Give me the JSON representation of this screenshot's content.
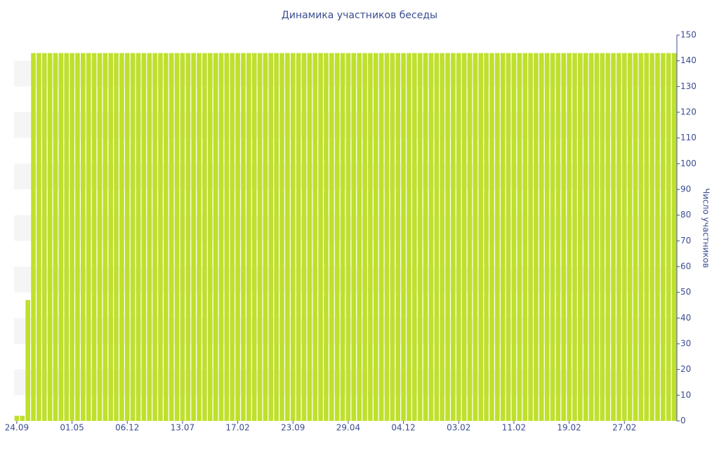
{
  "chart_data": {
    "type": "bar",
    "title": "Динамика участников беседы",
    "y_label": "Число участников",
    "categories": [
      "24.09",
      null,
      null,
      null,
      null,
      null,
      null,
      null,
      null,
      null,
      "01.05",
      null,
      null,
      null,
      null,
      null,
      null,
      null,
      null,
      null,
      "06.12",
      null,
      null,
      null,
      null,
      null,
      null,
      null,
      null,
      null,
      "13.07",
      null,
      null,
      null,
      null,
      null,
      null,
      null,
      null,
      null,
      "17.02",
      null,
      null,
      null,
      null,
      null,
      null,
      null,
      null,
      null,
      "23.09",
      null,
      null,
      null,
      null,
      null,
      null,
      null,
      null,
      null,
      "29.04",
      null,
      null,
      null,
      null,
      null,
      null,
      null,
      null,
      null,
      "04.12",
      null,
      null,
      null,
      null,
      null,
      null,
      null,
      null,
      null,
      "03.02",
      null,
      null,
      null,
      null,
      null,
      null,
      null,
      null,
      null,
      "11.02",
      null,
      null,
      null,
      null,
      null,
      null,
      null,
      null,
      null,
      "19.02",
      null,
      null,
      null,
      null,
      null,
      null,
      null,
      null,
      null,
      "27.02",
      null,
      null,
      null,
      null,
      null,
      null,
      null,
      null,
      null
    ],
    "values": [
      2,
      2,
      47,
      143,
      143,
      143,
      143,
      143,
      143,
      143,
      143,
      143,
      143,
      143,
      143,
      143,
      143,
      143,
      143,
      143,
      143,
      143,
      143,
      143,
      143,
      143,
      143,
      143,
      143,
      143,
      143,
      143,
      143,
      143,
      143,
      143,
      143,
      143,
      143,
      143,
      143,
      143,
      143,
      143,
      143,
      143,
      143,
      143,
      143,
      143,
      143,
      143,
      143,
      143,
      143,
      143,
      143,
      143,
      143,
      143,
      143,
      143,
      143,
      143,
      143,
      143,
      143,
      143,
      143,
      143,
      143,
      143,
      143,
      143,
      143,
      143,
      143,
      143,
      143,
      143,
      143,
      143,
      143,
      143,
      143,
      143,
      143,
      143,
      143,
      143,
      143,
      143,
      143,
      143,
      143,
      143,
      143,
      143,
      143,
      143,
      143,
      143,
      143,
      143,
      143,
      143,
      143,
      143,
      143,
      143,
      143,
      143,
      143,
      143,
      143,
      143,
      143,
      143,
      143,
      143
    ],
    "color": "#bfe02c",
    "ylim": [
      0,
      150
    ],
    "yticks": [
      0,
      10,
      20,
      30,
      40,
      50,
      60,
      70,
      80,
      90,
      100,
      110,
      120,
      130,
      140,
      150
    ],
    "y_axis_side": "right",
    "grid_bands": true
  }
}
